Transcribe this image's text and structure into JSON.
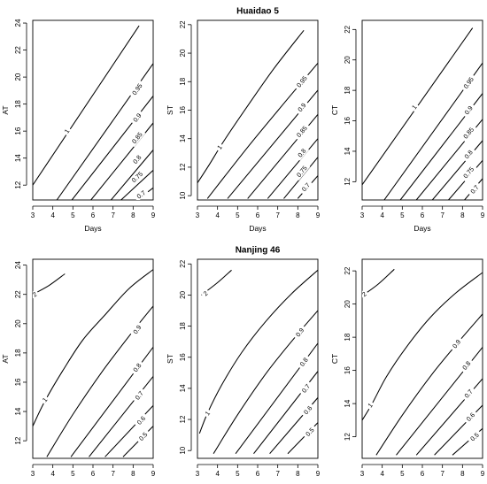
{
  "chart_data": [
    {
      "type": "contour",
      "group_title": "Huaidao 5",
      "xlabel": "Days",
      "ylabel": "AT",
      "x_range": [
        3,
        9
      ],
      "x_ticks": [
        3,
        4,
        5,
        6,
        7,
        8,
        9
      ],
      "y_range": [
        10.9,
        24.2
      ],
      "y_ticks": [
        12,
        14,
        16,
        18,
        20,
        22,
        24
      ],
      "contours": [
        {
          "level": "1",
          "points": [
            [
              3.0,
              12.0
            ],
            [
              8.3,
              23.8
            ]
          ],
          "label_at": [
            4.7,
            16.0
          ]
        },
        {
          "level": "0.95",
          "points": [
            [
              4.2,
              10.9
            ],
            [
              9.0,
              21.0
            ]
          ],
          "label_at": [
            8.2,
            19.1
          ]
        },
        {
          "level": "0.9",
          "points": [
            [
              4.95,
              10.9
            ],
            [
              9.0,
              18.6
            ]
          ],
          "label_at": [
            8.2,
            17.0
          ]
        },
        {
          "level": "0.85",
          "points": [
            [
              5.9,
              10.9
            ],
            [
              9.0,
              16.6
            ]
          ],
          "label_at": [
            8.2,
            15.5
          ]
        },
        {
          "level": "0.8",
          "points": [
            [
              6.9,
              10.9
            ],
            [
              9.0,
              14.6
            ]
          ],
          "label_at": [
            8.2,
            13.9
          ]
        },
        {
          "level": "0.75",
          "points": [
            [
              7.4,
              10.9
            ],
            [
              9.0,
              13.1
            ]
          ],
          "label_at": [
            8.2,
            12.6
          ]
        },
        {
          "level": "0.7",
          "points": [
            [
              8.2,
              10.9
            ],
            [
              9.0,
              11.8
            ]
          ],
          "label_at": [
            8.4,
            11.3
          ]
        }
      ]
    },
    {
      "type": "contour",
      "group_title": "",
      "xlabel": "Days",
      "ylabel": "ST",
      "x_range": [
        3,
        9
      ],
      "x_ticks": [
        3,
        4,
        5,
        6,
        7,
        8,
        9
      ],
      "y_range": [
        9.7,
        22.3
      ],
      "y_ticks": [
        10,
        12,
        14,
        16,
        18,
        20,
        22
      ],
      "contours": [
        {
          "level": "1",
          "points": [
            [
              3.0,
              10.9
            ],
            [
              3.6,
              12.2
            ],
            [
              4.3,
              13.8
            ],
            [
              5.5,
              16.3
            ],
            [
              6.8,
              18.9
            ],
            [
              8.3,
              21.6
            ]
          ],
          "label_at": [
            4.1,
            13.4
          ]
        },
        {
          "level": "0.95",
          "points": [
            [
              3.5,
              9.8
            ],
            [
              5.5,
              13.4
            ],
            [
              7.5,
              16.8
            ],
            [
              9.0,
              19.3
            ]
          ],
          "label_at": [
            8.2,
            18.0
          ]
        },
        {
          "level": "0.9",
          "points": [
            [
              4.5,
              9.8
            ],
            [
              9.0,
              17.4
            ]
          ],
          "label_at": [
            8.2,
            16.2
          ]
        },
        {
          "level": "0.85",
          "points": [
            [
              5.5,
              9.8
            ],
            [
              9.0,
              15.7
            ]
          ],
          "label_at": [
            8.2,
            14.5
          ]
        },
        {
          "level": "0.8",
          "points": [
            [
              6.5,
              9.8
            ],
            [
              9.0,
              14.0
            ]
          ],
          "label_at": [
            8.2,
            13.0
          ]
        },
        {
          "level": "0.75",
          "points": [
            [
              7.3,
              9.8
            ],
            [
              9.0,
              12.7
            ]
          ],
          "label_at": [
            8.2,
            11.7
          ]
        },
        {
          "level": "0.7",
          "points": [
            [
              8.0,
              9.8
            ],
            [
              9.0,
              11.4
            ]
          ],
          "label_at": [
            8.4,
            10.6
          ]
        }
      ]
    },
    {
      "type": "contour",
      "group_title": "",
      "xlabel": "Days",
      "ylabel": "CT",
      "x_range": [
        3,
        9
      ],
      "x_ticks": [
        3,
        4,
        5,
        6,
        7,
        8,
        9
      ],
      "y_range": [
        10.8,
        22.6
      ],
      "y_ticks": [
        12,
        14,
        16,
        18,
        20,
        22
      ],
      "contours": [
        {
          "level": "1",
          "points": [
            [
              3.0,
              11.8
            ],
            [
              8.5,
              22.1
            ]
          ],
          "label_at": [
            5.6,
            16.9
          ]
        },
        {
          "level": "0.95",
          "points": [
            [
              4.1,
              10.8
            ],
            [
              9.0,
              19.8
            ]
          ],
          "label_at": [
            8.3,
            18.5
          ]
        },
        {
          "level": "0.9",
          "points": [
            [
              4.9,
              10.8
            ],
            [
              9.0,
              17.8
            ]
          ],
          "label_at": [
            8.3,
            16.7
          ]
        },
        {
          "level": "0.85",
          "points": [
            [
              5.7,
              10.8
            ],
            [
              9.0,
              16.1
            ]
          ],
          "label_at": [
            8.3,
            15.2
          ]
        },
        {
          "level": "0.8",
          "points": [
            [
              6.5,
              10.8
            ],
            [
              9.0,
              14.7
            ]
          ],
          "label_at": [
            8.3,
            13.8
          ]
        },
        {
          "level": "0.75",
          "points": [
            [
              7.3,
              10.8
            ],
            [
              9.0,
              13.4
            ]
          ],
          "label_at": [
            8.3,
            12.6
          ]
        },
        {
          "level": "0.7",
          "points": [
            [
              8.1,
              10.8
            ],
            [
              9.0,
              12.2
            ]
          ],
          "label_at": [
            8.6,
            11.5
          ]
        }
      ]
    },
    {
      "type": "contour",
      "group_title": "Nanjing 46",
      "xlabel": "Days",
      "ylabel": "AT",
      "x_range": [
        3,
        9
      ],
      "x_ticks": [
        3,
        4,
        5,
        6,
        7,
        8,
        9
      ],
      "y_range": [
        10.8,
        24.4
      ],
      "y_ticks": [
        12,
        14,
        16,
        18,
        20,
        22,
        24
      ],
      "contours": [
        {
          "level": "2",
          "points": [
            [
              3.0,
              22.0
            ],
            [
              3.8,
              22.6
            ],
            [
              4.6,
              23.4
            ]
          ],
          "label_at": [
            3.1,
            22.0
          ]
        },
        {
          "level": "1",
          "points": [
            [
              3.0,
              13.0
            ],
            [
              3.6,
              14.7
            ],
            [
              4.5,
              16.8
            ],
            [
              5.5,
              18.9
            ],
            [
              6.6,
              20.6
            ],
            [
              7.8,
              22.4
            ],
            [
              9.0,
              23.7
            ]
          ],
          "label_at": [
            3.6,
            14.8
          ]
        },
        {
          "level": "0.9",
          "points": [
            [
              3.7,
              10.9
            ],
            [
              5.0,
              13.8
            ],
            [
              6.5,
              16.8
            ],
            [
              8.0,
              19.5
            ],
            [
              9.0,
              21.2
            ]
          ],
          "label_at": [
            8.2,
            19.6
          ]
        },
        {
          "level": "0.8",
          "points": [
            [
              4.9,
              10.9
            ],
            [
              9.0,
              18.4
            ]
          ],
          "label_at": [
            8.2,
            17.0
          ]
        },
        {
          "level": "0.7",
          "points": [
            [
              5.8,
              10.9
            ],
            [
              9.0,
              16.4
            ]
          ],
          "label_at": [
            8.3,
            15.1
          ]
        },
        {
          "level": "0.6",
          "points": [
            [
              6.6,
              10.9
            ],
            [
              9.0,
              14.4
            ]
          ],
          "label_at": [
            8.4,
            13.4
          ]
        },
        {
          "level": "0.5",
          "points": [
            [
              7.5,
              10.9
            ],
            [
              9.0,
              13.0
            ]
          ],
          "label_at": [
            8.5,
            12.3
          ]
        }
      ]
    },
    {
      "type": "contour",
      "group_title": "",
      "xlabel": "Days",
      "ylabel": "ST",
      "x_range": [
        3,
        9
      ],
      "x_ticks": [
        3,
        4,
        5,
        6,
        7,
        8,
        9
      ],
      "y_range": [
        9.5,
        22.3
      ],
      "y_ticks": [
        10,
        12,
        14,
        16,
        18,
        20,
        22
      ],
      "contours": [
        {
          "level": "2",
          "points": [
            [
              3.2,
              20.0
            ],
            [
              4.0,
              20.8
            ],
            [
              4.7,
              21.6
            ]
          ],
          "label_at": [
            3.4,
            20.1
          ]
        },
        {
          "level": "1",
          "points": [
            [
              3.1,
              11.1
            ],
            [
              3.5,
              12.4
            ],
            [
              4.2,
              14.2
            ],
            [
              5.2,
              16.3
            ],
            [
              6.4,
              18.3
            ],
            [
              7.7,
              20.1
            ],
            [
              9.0,
              21.6
            ]
          ],
          "label_at": [
            3.5,
            12.4
          ]
        },
        {
          "level": "0.9",
          "points": [
            [
              3.8,
              9.8
            ],
            [
              5.0,
              12.3
            ],
            [
              6.5,
              15.1
            ],
            [
              8.0,
              17.5
            ],
            [
              9.0,
              19.0
            ]
          ],
          "label_at": [
            8.1,
            17.6
          ]
        },
        {
          "level": "0.8",
          "points": [
            [
              4.9,
              9.8
            ],
            [
              9.0,
              16.9
            ]
          ],
          "label_at": [
            8.3,
            15.7
          ]
        },
        {
          "level": "0.7",
          "points": [
            [
              5.8,
              9.8
            ],
            [
              9.0,
              15.1
            ]
          ],
          "label_at": [
            8.4,
            14.0
          ]
        },
        {
          "level": "0.6",
          "points": [
            [
              6.6,
              9.8
            ],
            [
              9.0,
              13.4
            ]
          ],
          "label_at": [
            8.5,
            12.6
          ]
        },
        {
          "level": "0.5",
          "points": [
            [
              7.5,
              9.8
            ],
            [
              9.0,
              11.8
            ]
          ],
          "label_at": [
            8.6,
            11.2
          ]
        }
      ]
    },
    {
      "type": "contour",
      "group_title": "",
      "xlabel": "Days",
      "ylabel": "CT",
      "x_range": [
        3,
        9
      ],
      "x_ticks": [
        3,
        4,
        5,
        6,
        7,
        8,
        9
      ],
      "y_range": [
        10.7,
        22.7
      ],
      "y_ticks": [
        12,
        14,
        16,
        18,
        20,
        22
      ],
      "contours": [
        {
          "level": "2",
          "points": [
            [
              3.0,
              20.5
            ],
            [
              3.8,
              21.2
            ],
            [
              4.6,
              22.1
            ]
          ],
          "label_at": [
            3.1,
            20.6
          ]
        },
        {
          "level": "1",
          "points": [
            [
              3.0,
              13.0
            ],
            [
              3.5,
              14.0
            ],
            [
              4.2,
              15.6
            ],
            [
              5.2,
              17.4
            ],
            [
              6.4,
              19.2
            ],
            [
              7.7,
              20.7
            ],
            [
              9.0,
              21.9
            ]
          ],
          "label_at": [
            3.4,
            13.9
          ]
        },
        {
          "level": "0.9",
          "points": [
            [
              3.7,
              10.9
            ],
            [
              5.0,
              13.3
            ],
            [
              6.5,
              15.8
            ],
            [
              8.0,
              18.0
            ],
            [
              9.0,
              19.4
            ]
          ],
          "label_at": [
            7.7,
            17.6
          ]
        },
        {
          "level": "0.8",
          "points": [
            [
              4.7,
              10.9
            ],
            [
              9.0,
              17.4
            ]
          ],
          "label_at": [
            8.2,
            16.3
          ]
        },
        {
          "level": "0.7",
          "points": [
            [
              5.7,
              10.9
            ],
            [
              9.0,
              15.5
            ]
          ],
          "label_at": [
            8.3,
            14.6
          ]
        },
        {
          "level": "0.6",
          "points": [
            [
              6.6,
              10.9
            ],
            [
              9.0,
              13.9
            ]
          ],
          "label_at": [
            8.4,
            13.2
          ]
        },
        {
          "level": "0.5",
          "points": [
            [
              7.5,
              10.9
            ],
            [
              9.0,
              12.5
            ]
          ],
          "label_at": [
            8.6,
            12.0
          ]
        }
      ]
    }
  ]
}
